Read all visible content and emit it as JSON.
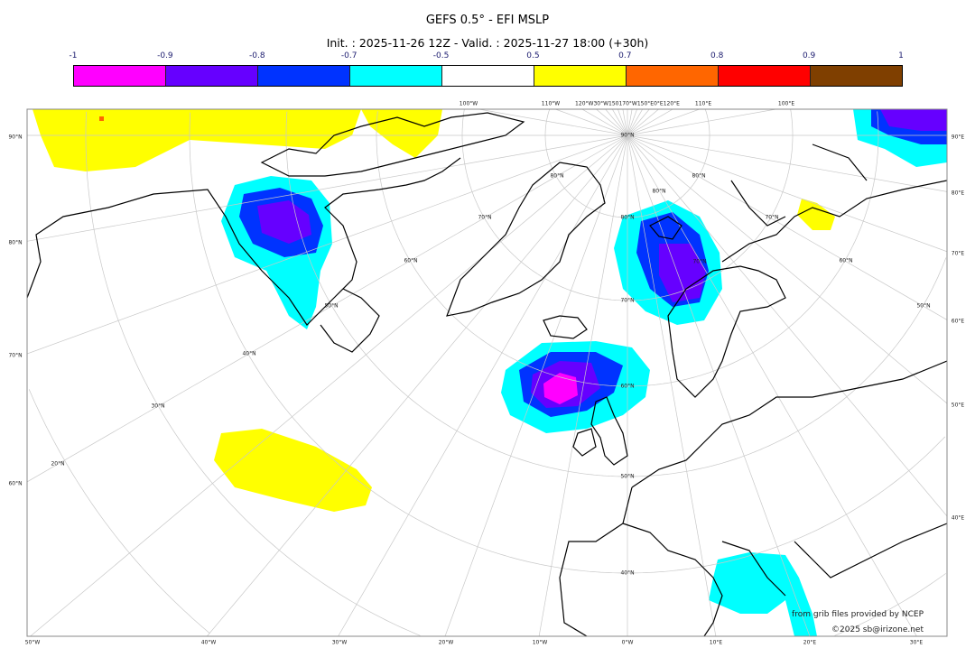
{
  "title": "GEFS 0.5° - EFI MSLP",
  "subtitle": "Init. : 2025-11-26 12Z - Valid. : 2025-11-27 18:00 (+30h)",
  "colorbar": {
    "ticks": [
      "-1",
      "-0.9",
      "-0.8",
      "-0.7",
      "-0.5",
      "0.5",
      "0.7",
      "0.8",
      "0.9",
      "1"
    ],
    "colors": [
      "#ff00ff",
      "#6600ff",
      "#0033ff",
      "#00ffff",
      "#ffffff",
      "#ffff00",
      "#ff6600",
      "#ff0000",
      "#7f3f00"
    ]
  },
  "axes": {
    "left": [
      "90°N",
      "80°N",
      "70°N",
      "60°N"
    ],
    "right": [
      "90°E",
      "80°E",
      "70°E",
      "60°E",
      "50°E",
      "40°E"
    ],
    "bottom": [
      "50°W",
      "40°W",
      "30°W",
      "20°W",
      "10°W",
      "0°W",
      "10°E",
      "20°E",
      "30°E"
    ],
    "top": [
      "100°W",
      "110°W",
      "120°W30°W150170°W150°E0°E120°E",
      "110°E",
      "100°E"
    ]
  },
  "grid_labels": [
    "90°N",
    "80°N",
    "70°N",
    "60°N",
    "50°N",
    "40°N",
    "30°N",
    "20°N",
    "80°N",
    "70°N",
    "60°N",
    "50°N",
    "80°N",
    "70°N",
    "60°N",
    "50°N",
    "40°N",
    "80°N",
    "70°N"
  ],
  "credits": {
    "line1": "from grib files provided by NCEP",
    "line2": "©2025 sb@irizone.net"
  }
}
